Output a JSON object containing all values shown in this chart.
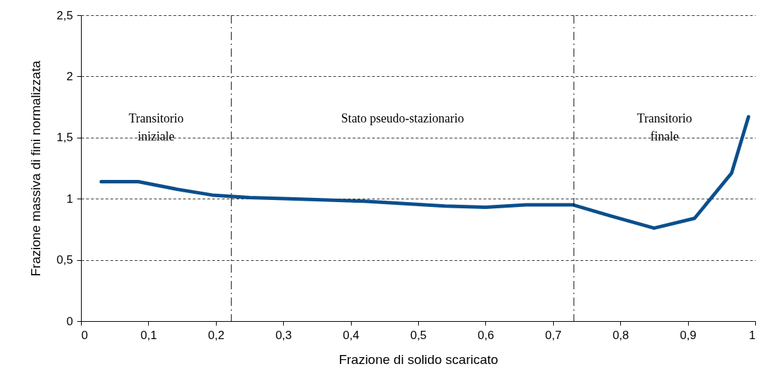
{
  "chart_data": {
    "type": "line",
    "xlabel": "Frazione di solido scaricato",
    "ylabel": "Frazione massiva di fini normalizzata",
    "x": [
      0.03,
      0.085,
      0.14,
      0.195,
      0.25,
      0.31,
      0.42,
      0.48,
      0.54,
      0.6,
      0.66,
      0.73,
      0.785,
      0.85,
      0.91,
      0.965,
      0.99
    ],
    "series": [
      {
        "color": "#0b4f8c",
        "values": [
          1.14,
          1.14,
          1.08,
          1.03,
          1.01,
          1.0,
          0.98,
          0.96,
          0.94,
          0.93,
          0.95,
          0.95,
          0.86,
          0.76,
          0.84,
          1.21,
          1.67
        ]
      }
    ],
    "xlim": [
      0,
      1
    ],
    "xticks": [
      0,
      {
        "value": 0.1,
        "label": "0,1"
      },
      {
        "value": 0.2,
        "label": "0,2"
      },
      {
        "value": 0.3,
        "label": "0,3"
      },
      {
        "value": 0.4,
        "label": "0,4"
      },
      {
        "value": 0.5,
        "label": "0,5"
      },
      {
        "value": 0.6,
        "label": "0,6"
      },
      {
        "value": 0.7,
        "label": "0,7"
      },
      {
        "value": 0.8,
        "label": "0,8"
      },
      {
        "value": 0.9,
        "label": "0,9"
      },
      1
    ],
    "ylim": [
      0,
      2.5
    ],
    "yticks": [
      0,
      {
        "value": 0.5,
        "label": "0,5"
      },
      1,
      {
        "value": 1.5,
        "label": "1,5"
      },
      2,
      {
        "value": 2.5,
        "label": "2,5"
      }
    ],
    "grid": "y",
    "marker": "none",
    "line_style": "solid",
    "ref_lines": [
      {
        "axis": "x",
        "value": 0.223,
        "color": "#000000",
        "line_style": "dashed"
      },
      {
        "axis": "x",
        "value": 0.731,
        "color": "#000000",
        "line_style": "dashed"
      }
    ],
    "annotations": [
      "Transitorio\niniziale",
      "Stato pseudo-stazionario",
      "Transitorio\nfinale"
    ]
  }
}
